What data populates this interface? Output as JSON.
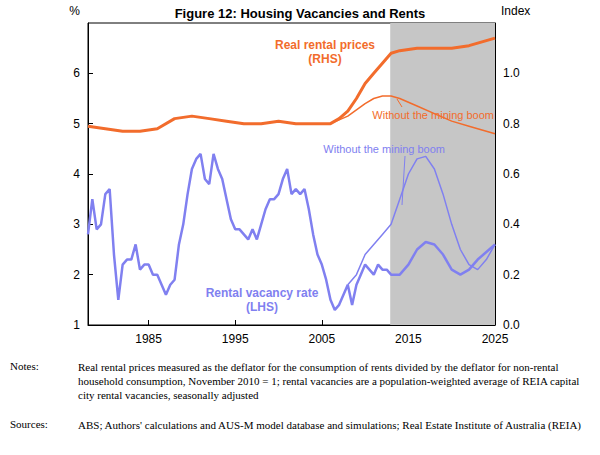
{
  "chart_data": {
    "type": "line",
    "title": "Figure 12: Housing Vacancies and Rents",
    "y_label": "%",
    "y2_label": "Index",
    "xlim": [
      1978,
      2025
    ],
    "xticks": [
      1985,
      1995,
      2005,
      2015,
      2025
    ],
    "ylim": [
      1,
      7
    ],
    "yticks": [
      1,
      2,
      3,
      4,
      5,
      6
    ],
    "y2lim": [
      0,
      1.2
    ],
    "y2ticks": [
      {
        "value": 0,
        "label": "0.0"
      },
      {
        "value": 0.2,
        "label": "0.2"
      },
      {
        "value": 0.4,
        "label": "0.4"
      },
      {
        "value": 0.6,
        "label": "0.6"
      },
      {
        "value": 0.8,
        "label": "0.8"
      },
      {
        "value": 1,
        "label": "1.0"
      }
    ],
    "grid": false,
    "shaded": [
      2012.9,
      2025
    ],
    "series": [
      {
        "name": "Real rental prices (RHS)",
        "axis": "y2",
        "color": "#f26c2c",
        "line_style": "solid",
        "x": [
          1978,
          1980,
          1982,
          1984,
          1986,
          1988,
          1990,
          1992,
          1994,
          1996,
          1998,
          2000,
          2002,
          2004,
          2006,
          2007,
          2008,
          2009,
          2010,
          2011,
          2012,
          2013,
          2014,
          2016,
          2018,
          2020,
          2022,
          2024,
          2025
        ],
        "values": [
          0.79,
          0.78,
          0.77,
          0.77,
          0.78,
          0.82,
          0.83,
          0.82,
          0.81,
          0.8,
          0.8,
          0.81,
          0.8,
          0.8,
          0.8,
          0.82,
          0.85,
          0.9,
          0.96,
          1.0,
          1.04,
          1.08,
          1.09,
          1.1,
          1.1,
          1.1,
          1.11,
          1.13,
          1.14
        ]
      },
      {
        "name": "Without the mining boom",
        "axis": "y2",
        "color": "#f26c2c",
        "line_style": "solid",
        "x": [
          2006,
          2008,
          2010,
          2011,
          2012,
          2013,
          2014,
          2016,
          2018,
          2020,
          2022,
          2024,
          2025
        ],
        "values": [
          0.8,
          0.83,
          0.88,
          0.9,
          0.91,
          0.91,
          0.9,
          0.87,
          0.84,
          0.81,
          0.79,
          0.77,
          0.76
        ]
      },
      {
        "name": "Rental vacancy rate (LHS)",
        "axis": "y",
        "color": "#8080f0",
        "line_style": "solid",
        "x": [
          1978,
          1978.5,
          1979,
          1979.5,
          1980,
          1980.5,
          1981,
          1981.5,
          1982,
          1982.5,
          1983,
          1983.5,
          1984,
          1984.5,
          1985,
          1985.5,
          1986,
          1986.5,
          1987,
          1987.5,
          1988,
          1988.5,
          1989,
          1989.5,
          1990,
          1990.5,
          1991,
          1991.5,
          1992,
          1992.5,
          1993,
          1993.5,
          1994,
          1994.5,
          1995,
          1995.5,
          1996,
          1996.5,
          1997,
          1997.5,
          1998,
          1998.5,
          1999,
          1999.5,
          2000,
          2000.5,
          2001,
          2001.5,
          2002,
          2002.5,
          2003,
          2003.5,
          2004,
          2004.5,
          2005,
          2005.5,
          2006,
          2006.5,
          2007,
          2007.5,
          2008,
          2008.5,
          2009,
          2009.5,
          2010,
          2010.5,
          2011,
          2011.5,
          2012,
          2012.5,
          2013,
          2014,
          2015,
          2016,
          2017,
          2018,
          2019,
          2020,
          2021,
          2022,
          2023,
          2024,
          2025
        ],
        "values": [
          2.8,
          3.5,
          2.9,
          3.0,
          3.6,
          3.7,
          2.4,
          1.5,
          2.2,
          2.3,
          2.3,
          2.6,
          2.1,
          2.2,
          2.2,
          2.0,
          2.0,
          1.8,
          1.6,
          1.8,
          1.9,
          2.6,
          3.0,
          3.6,
          4.1,
          4.3,
          4.4,
          3.9,
          3.8,
          4.4,
          4.1,
          3.9,
          3.5,
          3.1,
          2.9,
          2.9,
          2.8,
          2.7,
          2.9,
          2.7,
          3.0,
          3.3,
          3.5,
          3.5,
          3.6,
          3.9,
          4.1,
          3.6,
          3.7,
          3.6,
          3.7,
          3.3,
          2.8,
          2.4,
          2.2,
          1.9,
          1.5,
          1.3,
          1.4,
          1.6,
          1.8,
          1.4,
          1.8,
          2.0,
          2.2,
          2.1,
          2.0,
          2.2,
          2.1,
          2.1,
          2.0,
          2.0,
          2.2,
          2.5,
          2.65,
          2.6,
          2.4,
          2.1,
          2.0,
          2.1,
          2.3,
          2.45,
          2.6
        ]
      },
      {
        "name": "Without the mining boom",
        "axis": "y",
        "color": "#8080f0",
        "line_style": "solid",
        "x": [
          2008,
          2009,
          2010,
          2011,
          2012,
          2013,
          2014,
          2015,
          2016,
          2017,
          2018,
          2019,
          2020,
          2021,
          2022,
          2023,
          2024,
          2025
        ],
        "values": [
          1.8,
          2.0,
          2.4,
          2.6,
          2.8,
          3.0,
          3.5,
          4.0,
          4.3,
          4.35,
          4.1,
          3.6,
          3.0,
          2.5,
          2.2,
          2.1,
          2.3,
          2.6
        ]
      }
    ],
    "annotations": [
      {
        "text": "Real rental prices\n(RHS)",
        "color": "#f26c2c"
      },
      {
        "text": "Without the mining boom",
        "color": "#f26c2c"
      },
      {
        "text": "Without the mining boom",
        "color": "#8080f0"
      },
      {
        "text": "Rental vacancy rate\n(LHS)",
        "color": "#8080f0"
      }
    ],
    "notes": {
      "label": "Notes:",
      "text": "Real rental prices measured as the deflator for the consumption of rents divided by the deflator for non-rental household consumption, November 2010 = 1; rental vacancies are a population-weighted average of REIA capital city rental vacancies, seasonally adjusted"
    },
    "sources": {
      "label": "Sources:",
      "text": "ABS; Authors' calculations and AUS-M model database and simulations; Real Estate Institute of Australia (REIA)"
    }
  }
}
